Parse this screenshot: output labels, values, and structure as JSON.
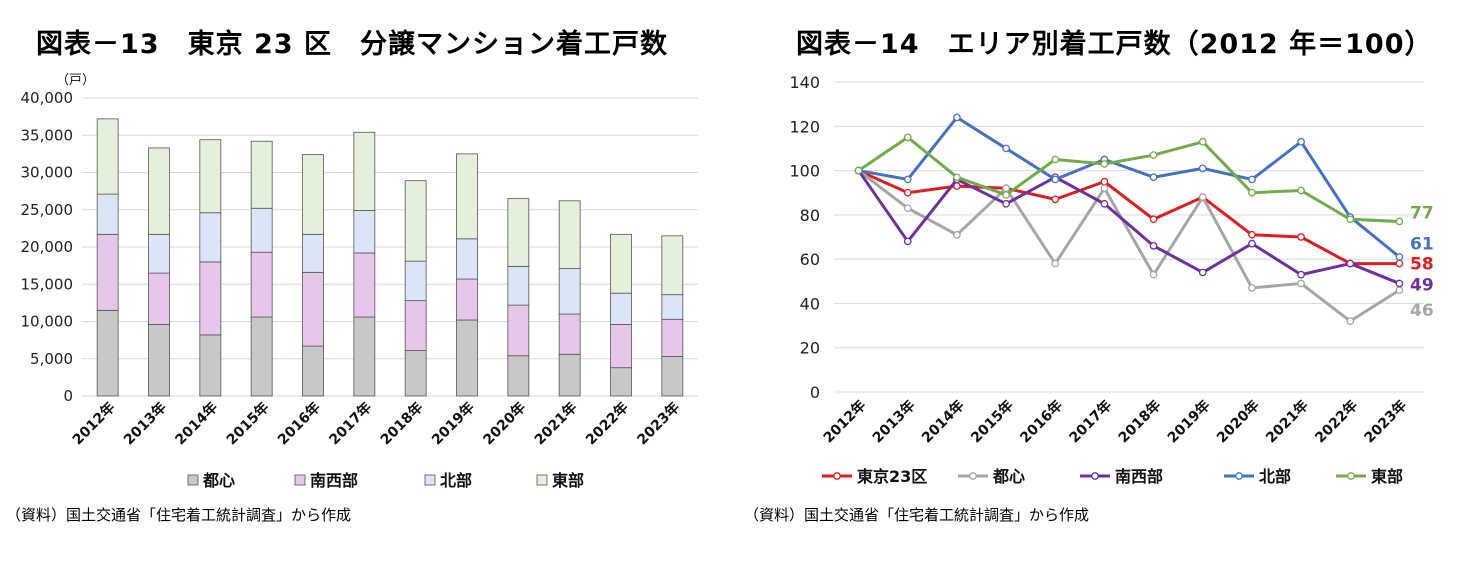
{
  "left": {
    "title": "図表－13　東京 23 区　分譲マンション着工戸数",
    "source": "（資料）国土交通省「住宅着工統計調査」から作成"
  },
  "right": {
    "title": "図表－14　エリア別着工戸数（2012 年＝100）",
    "source": "（資料）国土交通省「住宅着工統計調査」から作成"
  },
  "colors": {
    "toshin": "#c8c8c8",
    "nanseibu": "#e6c7e9",
    "hokubu": "#dae6f8",
    "tobu": "#e5f0da",
    "bar_edge": "#555555",
    "grid": "#d9d9d9",
    "line_tokyo": "#e31c1c",
    "line_toshin": "#a6a6a6",
    "line_nanseibu": "#7030a0",
    "line_hokubu": "#4472c4",
    "line_tobu": "#70ad47"
  },
  "chart_data": [
    {
      "type": "bar",
      "stacked": true,
      "title": "図表－13　東京 23 区　分譲マンション着工戸数",
      "ylabel": "（戸）",
      "ylim": [
        0,
        40000
      ],
      "yticks": [
        "0",
        "5,000",
        "10,000",
        "15,000",
        "20,000",
        "25,000",
        "30,000",
        "35,000",
        "40,000"
      ],
      "categories": [
        "2012年",
        "2013年",
        "2014年",
        "2015年",
        "2016年",
        "2017年",
        "2018年",
        "2019年",
        "2020年",
        "2021年",
        "2022年",
        "2023年"
      ],
      "series": [
        {
          "name": "都心",
          "color_key": "toshin",
          "values": [
            11500,
            9600,
            8200,
            10600,
            6700,
            10600,
            6100,
            10200,
            5400,
            5600,
            3800,
            5300
          ]
        },
        {
          "name": "南西部",
          "color_key": "nanseibu",
          "values": [
            10200,
            6900,
            9800,
            8700,
            9900,
            8600,
            6700,
            5500,
            6800,
            5400,
            5800,
            5000
          ]
        },
        {
          "name": "北部",
          "color_key": "hokubu",
          "values": [
            5400,
            5200,
            6600,
            5900,
            5100,
            5700,
            5300,
            5400,
            5200,
            6100,
            4200,
            3300
          ]
        },
        {
          "name": "東部",
          "color_key": "tobu",
          "values": [
            10100,
            11600,
            9800,
            9000,
            10700,
            10500,
            10800,
            11400,
            9100,
            9100,
            7900,
            7900
          ]
        }
      ],
      "legend": [
        "都心",
        "南西部",
        "北部",
        "東部"
      ],
      "legend_position": "bottom"
    },
    {
      "type": "line",
      "title": "図表－14　エリア別着工戸数（2012 年＝100）",
      "ylim": [
        0,
        140
      ],
      "yticks": [
        "0",
        "20",
        "40",
        "60",
        "80",
        "100",
        "120",
        "140"
      ],
      "categories": [
        "2012年",
        "2013年",
        "2014年",
        "2015年",
        "2016年",
        "2017年",
        "2018年",
        "2019年",
        "2020年",
        "2021年",
        "2022年",
        "2023年"
      ],
      "series": [
        {
          "name": "東京23区",
          "color_key": "line_tokyo",
          "values": [
            100,
            90,
            93,
            92,
            87,
            95,
            78,
            88,
            71,
            70,
            58,
            58
          ],
          "end_label": "58"
        },
        {
          "name": "都心",
          "color_key": "line_toshin",
          "values": [
            100,
            83,
            71,
            92,
            58,
            92,
            53,
            88,
            47,
            49,
            32,
            46
          ],
          "end_label": "46"
        },
        {
          "name": "南西部",
          "color_key": "line_nanseibu",
          "values": [
            100,
            68,
            96,
            85,
            97,
            85,
            66,
            54,
            67,
            53,
            58,
            49
          ],
          "end_label": "49"
        },
        {
          "name": "北部",
          "color_key": "line_hokubu",
          "values": [
            100,
            96,
            124,
            110,
            96,
            105,
            97,
            101,
            96,
            113,
            79,
            61
          ],
          "end_label": "61"
        },
        {
          "name": "東部",
          "color_key": "line_tobu",
          "values": [
            100,
            115,
            97,
            89,
            105,
            103,
            107,
            113,
            90,
            91,
            78,
            77
          ],
          "end_label": "77"
        }
      ],
      "legend": [
        "東京23区",
        "都心",
        "南西部",
        "北部",
        "東部"
      ],
      "legend_position": "bottom"
    }
  ]
}
